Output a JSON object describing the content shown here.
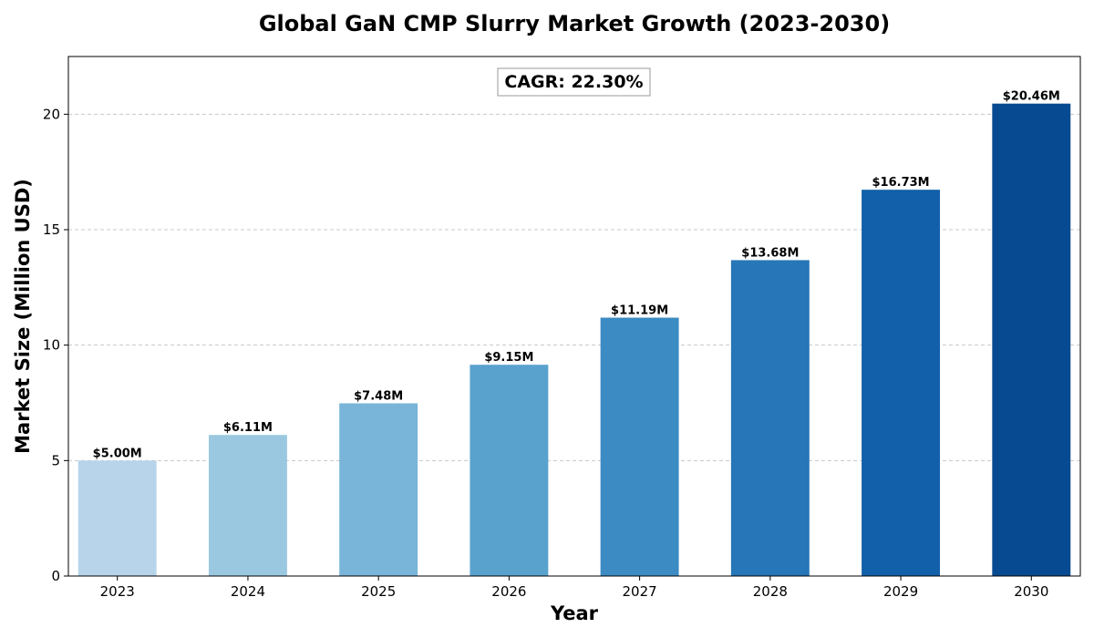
{
  "chart_data": {
    "type": "bar",
    "title": "Global GaN CMP Slurry Market Growth (2023-2030)",
    "xlabel": "Year",
    "ylabel": "Market Size (Million USD)",
    "categories": [
      "2023",
      "2024",
      "2025",
      "2026",
      "2027",
      "2028",
      "2029",
      "2030"
    ],
    "values": [
      5.0,
      6.11,
      7.48,
      9.15,
      11.19,
      13.68,
      16.73,
      20.46
    ],
    "data_labels": [
      "$5.00M",
      "$6.11M",
      "$7.48M",
      "$9.15M",
      "$11.19M",
      "$13.68M",
      "$16.73M",
      "$20.46M"
    ],
    "colors": [
      "#b8d4ea",
      "#9ac8e0",
      "#79b5d9",
      "#5aa2ce",
      "#3c8bc3",
      "#2676b8",
      "#1260aa",
      "#084a91"
    ],
    "ylim": [
      0,
      22.5
    ],
    "yticks": [
      0,
      5,
      10,
      15,
      20
    ],
    "grid": true,
    "annotation": "CAGR: 22.30%"
  }
}
